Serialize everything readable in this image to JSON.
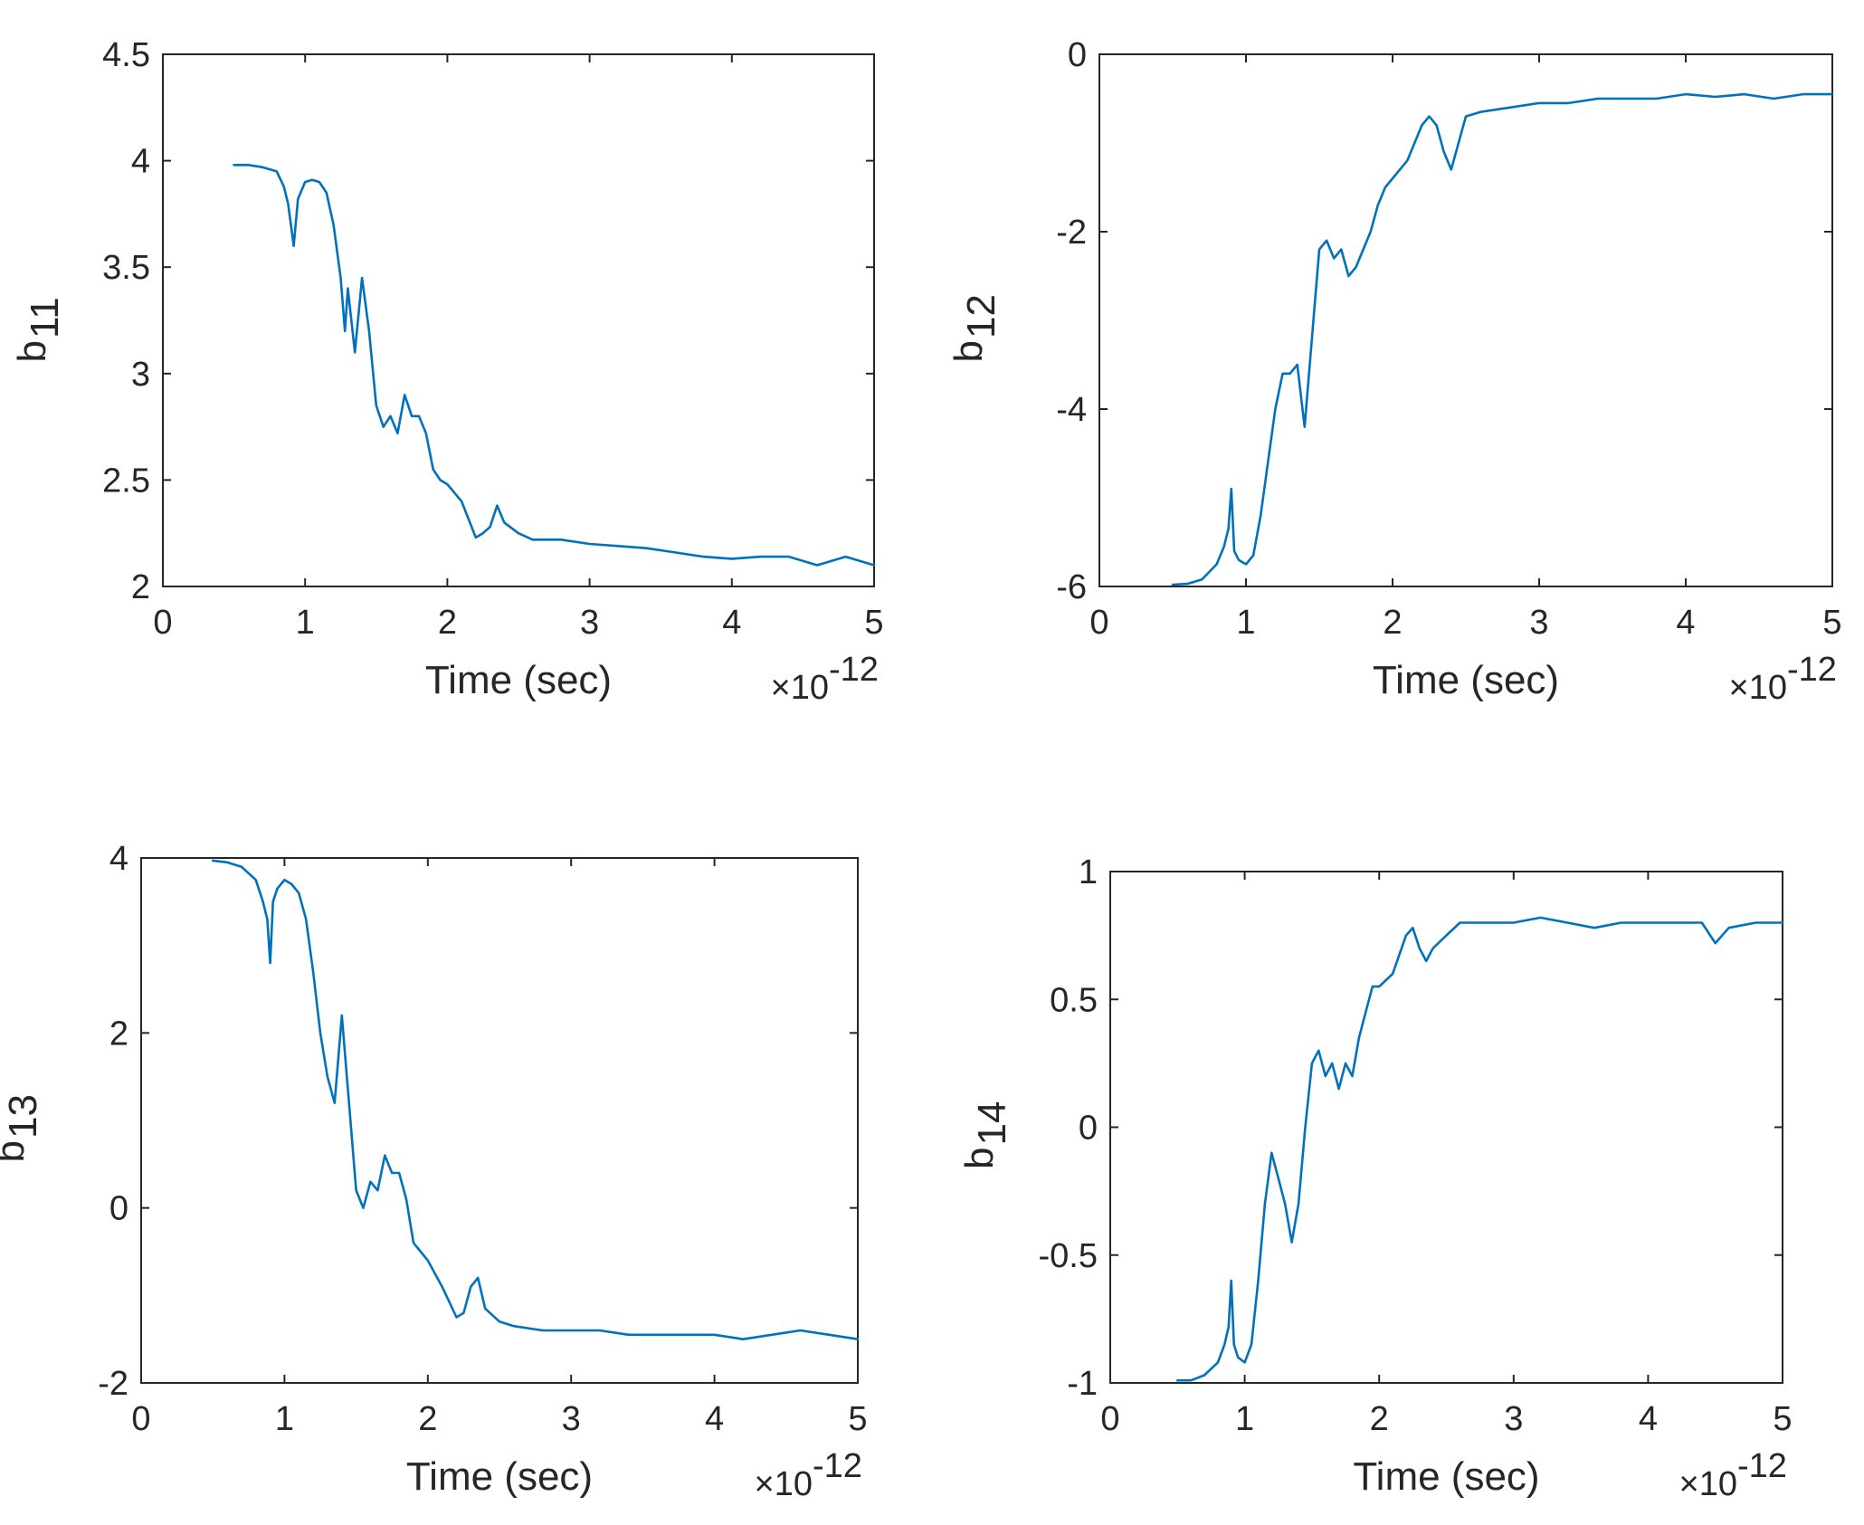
{
  "chart_data": [
    {
      "type": "line",
      "id": "b11",
      "ylabel_base": "b",
      "ylabel_sub": "11",
      "xlabel": "Time (sec)",
      "x_multiplier_text": "×10",
      "x_multiplier_exp": "-12",
      "xlim": [
        0,
        5
      ],
      "ylim": [
        2,
        4.5
      ],
      "xticks": [
        0,
        1,
        2,
        3,
        4,
        5
      ],
      "xtick_labels": [
        "0",
        "1",
        "2",
        "3",
        "4",
        "5"
      ],
      "yticks": [
        2,
        2.5,
        3,
        3.5,
        4,
        4.5
      ],
      "ytick_labels": [
        "2",
        "2.5",
        "3",
        "3.5",
        "4",
        "4.5"
      ],
      "color": "#0072bd",
      "series": [
        {
          "name": "b11",
          "x": [
            0.5,
            0.6,
            0.7,
            0.8,
            0.85,
            0.88,
            0.9,
            0.92,
            0.95,
            1.0,
            1.05,
            1.1,
            1.15,
            1.2,
            1.25,
            1.28,
            1.3,
            1.35,
            1.4,
            1.45,
            1.5,
            1.55,
            1.6,
            1.65,
            1.7,
            1.75,
            1.8,
            1.85,
            1.9,
            1.95,
            2.0,
            2.1,
            2.2,
            2.25,
            2.3,
            2.35,
            2.4,
            2.5,
            2.6,
            2.8,
            3.0,
            3.2,
            3.4,
            3.6,
            3.8,
            4.0,
            4.2,
            4.4,
            4.6,
            4.8,
            5.0
          ],
          "y": [
            3.98,
            3.98,
            3.97,
            3.95,
            3.88,
            3.8,
            3.7,
            3.6,
            3.82,
            3.9,
            3.91,
            3.9,
            3.85,
            3.7,
            3.45,
            3.2,
            3.4,
            3.1,
            3.45,
            3.2,
            2.85,
            2.75,
            2.8,
            2.72,
            2.9,
            2.8,
            2.8,
            2.72,
            2.55,
            2.5,
            2.48,
            2.4,
            2.23,
            2.25,
            2.28,
            2.38,
            2.3,
            2.25,
            2.22,
            2.22,
            2.2,
            2.19,
            2.18,
            2.16,
            2.14,
            2.13,
            2.14,
            2.14,
            2.1,
            2.14,
            2.1
          ]
        }
      ]
    },
    {
      "type": "line",
      "id": "b12",
      "ylabel_base": "b",
      "ylabel_sub": "12",
      "xlabel": "Time (sec)",
      "x_multiplier_text": "×10",
      "x_multiplier_exp": "-12",
      "xlim": [
        0,
        5
      ],
      "ylim": [
        -6,
        0
      ],
      "xticks": [
        0,
        1,
        2,
        3,
        4,
        5
      ],
      "xtick_labels": [
        "0",
        "1",
        "2",
        "3",
        "4",
        "5"
      ],
      "yticks": [
        -6,
        -4,
        -2,
        0
      ],
      "ytick_labels": [
        "-6",
        "-4",
        "-2",
        "0"
      ],
      "color": "#0072bd",
      "series": [
        {
          "name": "b12",
          "x": [
            0.5,
            0.6,
            0.7,
            0.8,
            0.85,
            0.88,
            0.9,
            0.92,
            0.95,
            1.0,
            1.05,
            1.1,
            1.15,
            1.2,
            1.25,
            1.3,
            1.35,
            1.4,
            1.45,
            1.5,
            1.55,
            1.6,
            1.65,
            1.7,
            1.75,
            1.8,
            1.85,
            1.9,
            1.95,
            2.0,
            2.1,
            2.2,
            2.25,
            2.3,
            2.35,
            2.4,
            2.5,
            2.6,
            2.8,
            3.0,
            3.2,
            3.4,
            3.6,
            3.8,
            4.0,
            4.2,
            4.4,
            4.6,
            4.8,
            5.0
          ],
          "y": [
            -5.98,
            -5.97,
            -5.92,
            -5.75,
            -5.55,
            -5.35,
            -4.9,
            -5.6,
            -5.7,
            -5.75,
            -5.65,
            -5.2,
            -4.6,
            -4.0,
            -3.6,
            -3.6,
            -3.5,
            -4.2,
            -3.2,
            -2.2,
            -2.1,
            -2.3,
            -2.2,
            -2.5,
            -2.4,
            -2.2,
            -2.0,
            -1.7,
            -1.5,
            -1.4,
            -1.2,
            -0.8,
            -0.7,
            -0.8,
            -1.1,
            -1.3,
            -0.7,
            -0.65,
            -0.6,
            -0.55,
            -0.55,
            -0.5,
            -0.5,
            -0.5,
            -0.45,
            -0.48,
            -0.45,
            -0.5,
            -0.45,
            -0.45
          ]
        }
      ]
    },
    {
      "type": "line",
      "id": "b13",
      "ylabel_base": "b",
      "ylabel_sub": "13",
      "xlabel": "Time (sec)",
      "x_multiplier_text": "×10",
      "x_multiplier_exp": "-12",
      "xlim": [
        0,
        5
      ],
      "ylim": [
        -2,
        4
      ],
      "xticks": [
        0,
        1,
        2,
        3,
        4,
        5
      ],
      "xtick_labels": [
        "0",
        "1",
        "2",
        "3",
        "4",
        "5"
      ],
      "yticks": [
        -2,
        0,
        2,
        4
      ],
      "ytick_labels": [
        "-2",
        "0",
        "2",
        "4"
      ],
      "color": "#0072bd",
      "series": [
        {
          "name": "b13",
          "x": [
            0.5,
            0.6,
            0.7,
            0.8,
            0.85,
            0.88,
            0.9,
            0.92,
            0.95,
            1.0,
            1.05,
            1.1,
            1.15,
            1.2,
            1.25,
            1.3,
            1.35,
            1.4,
            1.45,
            1.5,
            1.55,
            1.6,
            1.65,
            1.7,
            1.75,
            1.8,
            1.85,
            1.9,
            1.95,
            2.0,
            2.1,
            2.2,
            2.25,
            2.3,
            2.35,
            2.4,
            2.5,
            2.6,
            2.8,
            3.0,
            3.2,
            3.4,
            3.6,
            3.8,
            4.0,
            4.2,
            4.4,
            4.6,
            4.8,
            5.0
          ],
          "y": [
            3.97,
            3.95,
            3.9,
            3.75,
            3.5,
            3.3,
            2.8,
            3.5,
            3.65,
            3.75,
            3.7,
            3.6,
            3.3,
            2.7,
            2.0,
            1.5,
            1.2,
            2.2,
            1.2,
            0.2,
            0.0,
            0.3,
            0.2,
            0.6,
            0.4,
            0.4,
            0.1,
            -0.4,
            -0.5,
            -0.6,
            -0.9,
            -1.25,
            -1.2,
            -0.9,
            -0.8,
            -1.15,
            -1.3,
            -1.35,
            -1.4,
            -1.4,
            -1.4,
            -1.45,
            -1.45,
            -1.45,
            -1.45,
            -1.5,
            -1.45,
            -1.4,
            -1.45,
            -1.5
          ]
        }
      ]
    },
    {
      "type": "line",
      "id": "b14",
      "ylabel_base": "b",
      "ylabel_sub": "14",
      "xlabel": "Time (sec)",
      "x_multiplier_text": "×10",
      "x_multiplier_exp": "-12",
      "xlim": [
        0,
        5
      ],
      "ylim": [
        -1,
        1
      ],
      "xticks": [
        0,
        1,
        2,
        3,
        4,
        5
      ],
      "xtick_labels": [
        "0",
        "1",
        "2",
        "3",
        "4",
        "5"
      ],
      "yticks": [
        -1,
        -0.5,
        0,
        0.5,
        1
      ],
      "ytick_labels": [
        "-1",
        "-0.5",
        "0",
        "0.5",
        "1"
      ],
      "color": "#0072bd",
      "series": [
        {
          "name": "b14",
          "x": [
            0.5,
            0.6,
            0.7,
            0.8,
            0.85,
            0.88,
            0.9,
            0.92,
            0.95,
            1.0,
            1.05,
            1.1,
            1.15,
            1.2,
            1.25,
            1.3,
            1.35,
            1.4,
            1.45,
            1.5,
            1.55,
            1.6,
            1.65,
            1.7,
            1.75,
            1.8,
            1.85,
            1.9,
            1.95,
            2.0,
            2.1,
            2.2,
            2.25,
            2.3,
            2.35,
            2.4,
            2.5,
            2.6,
            2.8,
            3.0,
            3.2,
            3.4,
            3.6,
            3.8,
            4.0,
            4.2,
            4.4,
            4.5,
            4.6,
            4.8,
            5.0
          ],
          "y": [
            -0.99,
            -0.99,
            -0.97,
            -0.92,
            -0.85,
            -0.78,
            -0.6,
            -0.85,
            -0.9,
            -0.92,
            -0.85,
            -0.6,
            -0.3,
            -0.1,
            -0.2,
            -0.3,
            -0.45,
            -0.3,
            0.0,
            0.25,
            0.3,
            0.2,
            0.25,
            0.15,
            0.25,
            0.2,
            0.35,
            0.45,
            0.55,
            0.55,
            0.6,
            0.75,
            0.78,
            0.7,
            0.65,
            0.7,
            0.75,
            0.8,
            0.8,
            0.8,
            0.82,
            0.8,
            0.78,
            0.8,
            0.8,
            0.8,
            0.8,
            0.72,
            0.78,
            0.8,
            0.8
          ]
        }
      ]
    }
  ]
}
